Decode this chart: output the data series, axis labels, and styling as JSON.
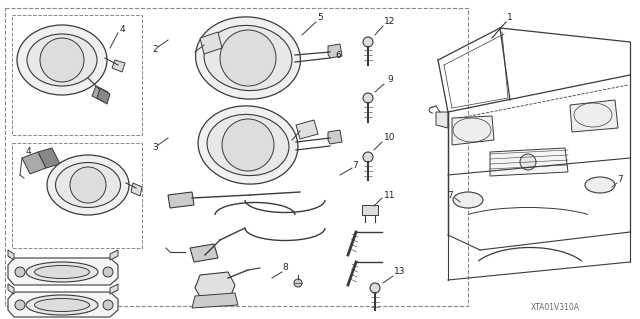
{
  "bg_color": "#ffffff",
  "line_color": "#3a3a3a",
  "dash_color": "#888888",
  "watermark": "XTA01V310A",
  "fs": 6.5,
  "fs_small": 5.5
}
